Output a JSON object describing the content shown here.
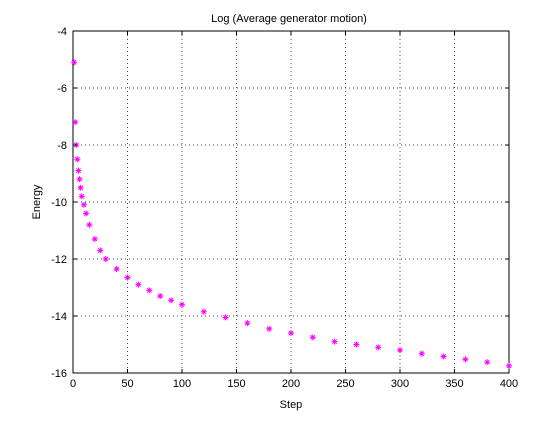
{
  "chart_data": {
    "type": "line",
    "title": "Log (Average generator motion)",
    "xlabel": "Step",
    "ylabel": "Energy",
    "xlim": [
      0,
      400
    ],
    "ylim": [
      -16,
      -4
    ],
    "xticks": [
      0,
      50,
      100,
      150,
      200,
      250,
      300,
      350,
      400
    ],
    "yticks": [
      -16,
      -14,
      -12,
      -10,
      -8,
      -6,
      -4
    ],
    "xtick_labels": [
      "0",
      "50",
      "100",
      "150",
      "200",
      "250",
      "300",
      "350",
      "400"
    ],
    "ytick_labels": [
      "-16",
      "-14",
      "-12",
      "-10",
      "-8",
      "-6",
      "-4"
    ],
    "grid": true,
    "legend": "none",
    "marker": "asterisk",
    "color": "#ff00ff",
    "series": [
      {
        "x": [
          1,
          2,
          3,
          4,
          5,
          6,
          7,
          8,
          10,
          12,
          15,
          20,
          25,
          30,
          40,
          50,
          60,
          70,
          80,
          90,
          100,
          120,
          140,
          160,
          180,
          200,
          220,
          240,
          260,
          280,
          300,
          320,
          340,
          360,
          380,
          400
        ],
        "values": [
          -5.1,
          -7.2,
          -8.0,
          -8.5,
          -8.9,
          -9.2,
          -9.5,
          -9.8,
          -10.1,
          -10.4,
          -10.8,
          -11.3,
          -11.7,
          -12.0,
          -12.35,
          -12.65,
          -12.9,
          -13.1,
          -13.3,
          -13.45,
          -13.6,
          -13.85,
          -14.05,
          -14.25,
          -14.45,
          -14.6,
          -14.75,
          -14.9,
          -15.0,
          -15.1,
          -15.2,
          -15.32,
          -15.42,
          -15.52,
          -15.62,
          -15.75
        ]
      }
    ]
  }
}
